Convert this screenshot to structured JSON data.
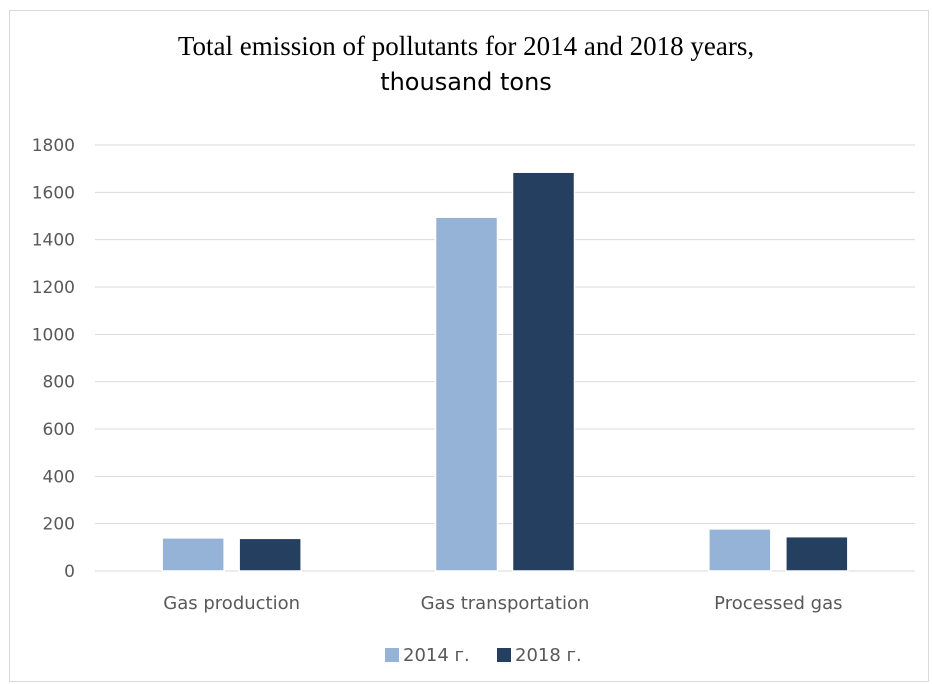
{
  "chart_data": {
    "type": "bar",
    "title_line1": "Total emission of pollutants for 2014 and 2018 years,",
    "title_line2": "thousand tons",
    "categories": [
      "Gas production",
      "Gas transportation",
      "Processed gas"
    ],
    "series": [
      {
        "name": "2014 г.",
        "values": [
          140,
          1495,
          178
        ],
        "color": "#95b3d7"
      },
      {
        "name": "2018 г.",
        "values": [
          138,
          1685,
          145
        ],
        "color": "#243f60"
      }
    ],
    "ylim": [
      0,
      1800
    ],
    "yticks": [
      0,
      200,
      400,
      600,
      800,
      1000,
      1200,
      1400,
      1600,
      1800
    ],
    "grid": true,
    "gridline_color": "#d9d9d9",
    "legend_position": "bottom"
  }
}
